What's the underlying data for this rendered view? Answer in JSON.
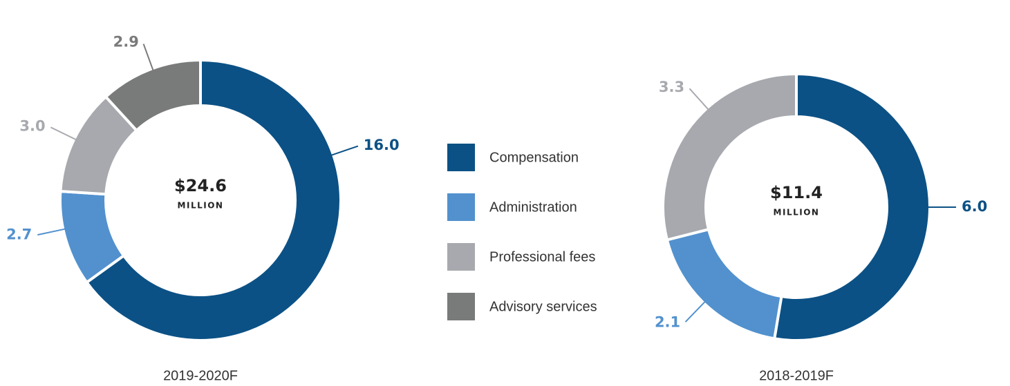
{
  "legend": {
    "items": [
      {
        "name": "Compensation",
        "color": "#0b5185"
      },
      {
        "name": "Administration",
        "color": "#5291ce"
      },
      {
        "name": "Professional fees",
        "color": "#a7a9ae"
      },
      {
        "name": "Advisory services",
        "color": "#797a7a"
      }
    ]
  },
  "chart_data": [
    {
      "type": "pie",
      "values": [
        16.0,
        2.7,
        3.0,
        2.9
      ],
      "value_labels": [
        "16.0",
        "2.7",
        "3.0",
        "2.9"
      ],
      "center_title": "$24.6",
      "center_subtitle": "MILLION",
      "caption": "2019-2020F"
    },
    {
      "type": "pie",
      "values": [
        6.0,
        2.1,
        3.3
      ],
      "value_labels": [
        "6.0",
        "2.1",
        "3.3"
      ],
      "center_title": "$11.4",
      "center_subtitle": "MILLION",
      "caption": "2018-2019F"
    }
  ]
}
